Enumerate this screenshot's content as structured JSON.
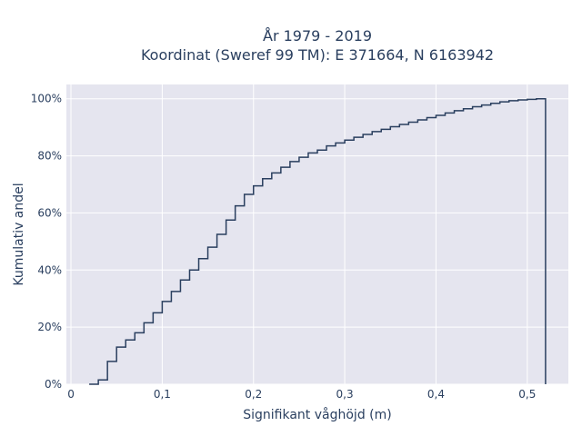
{
  "chart_data": {
    "type": "line",
    "line_shape": "step-hv",
    "title_line1": "År 1979 - 2019",
    "title_line2": "Koordinat (Sweref 99 TM): E 371664, N 6163942",
    "xlabel": "Signifikant våghöjd (m)",
    "ylabel": "Kumulativ andel",
    "xlim": [
      -0.005,
      0.545
    ],
    "ylim": [
      0,
      1.05
    ],
    "xticks": [
      0,
      0.1,
      0.2,
      0.3,
      0.4,
      0.5
    ],
    "xtick_labels": [
      "0",
      "0,1",
      "0,2",
      "0,3",
      "0,4",
      "0,5"
    ],
    "yticks": [
      0,
      0.2,
      0.4,
      0.6,
      0.8,
      1.0
    ],
    "ytick_labels": [
      "0%",
      "20%",
      "40%",
      "60%",
      "80%",
      "100%"
    ],
    "grid": true,
    "plot_background": "#e5e5ef",
    "line_color": "#2a3f5f",
    "series": [
      {
        "x": [
          0.02,
          0.03,
          0.04,
          0.05,
          0.06,
          0.07,
          0.08,
          0.09,
          0.1,
          0.11,
          0.12,
          0.13,
          0.14,
          0.15,
          0.16,
          0.17,
          0.18,
          0.19,
          0.2,
          0.21,
          0.22,
          0.23,
          0.24,
          0.25,
          0.26,
          0.27,
          0.28,
          0.29,
          0.3,
          0.31,
          0.32,
          0.33,
          0.34,
          0.35,
          0.36,
          0.37,
          0.38,
          0.39,
          0.4,
          0.41,
          0.42,
          0.43,
          0.44,
          0.45,
          0.46,
          0.47,
          0.48,
          0.49,
          0.5,
          0.51,
          0.52,
          0.52
        ],
        "y": [
          0.0,
          0.015,
          0.08,
          0.13,
          0.155,
          0.18,
          0.215,
          0.25,
          0.29,
          0.325,
          0.365,
          0.4,
          0.44,
          0.48,
          0.525,
          0.575,
          0.625,
          0.665,
          0.695,
          0.72,
          0.74,
          0.76,
          0.78,
          0.795,
          0.81,
          0.82,
          0.835,
          0.845,
          0.855,
          0.865,
          0.875,
          0.885,
          0.893,
          0.902,
          0.91,
          0.918,
          0.926,
          0.934,
          0.942,
          0.95,
          0.958,
          0.965,
          0.972,
          0.978,
          0.984,
          0.989,
          0.993,
          0.996,
          0.998,
          1.0,
          1.0,
          0.0
        ]
      }
    ]
  }
}
